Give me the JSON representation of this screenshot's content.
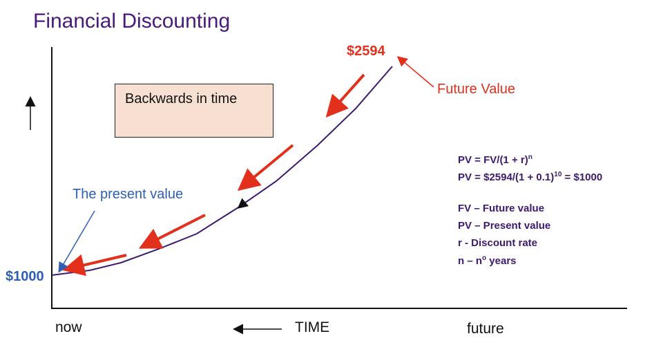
{
  "title": "Financial Discounting",
  "box_text": "Backwards in time",
  "present_value_label": "The present value",
  "start_value": "$1000",
  "end_value": "$2594",
  "future_value_label": "Future Value",
  "formula": {
    "line1_main": "PV = FV/(1 + r)",
    "line1_sup": "n",
    "line2_main": "PV = $2594/(1 + 0.1)",
    "line2_sup": "10",
    "line2_tail": " = $1000"
  },
  "legend": {
    "fv": "FV – Future value",
    "pv": "PV – Present value",
    "r": "r - Discount rate",
    "n_main": "n – n",
    "n_sup": "o",
    "n_tail": " years"
  },
  "axis": {
    "now": "now",
    "time": "TIME",
    "future": "future"
  },
  "colors": {
    "title": "#4a1a7a",
    "curve": "#3c1a70",
    "accent_red": "#e2301c",
    "accent_blue": "#2e5fb5",
    "box_fill": "#f7e0d2"
  }
}
